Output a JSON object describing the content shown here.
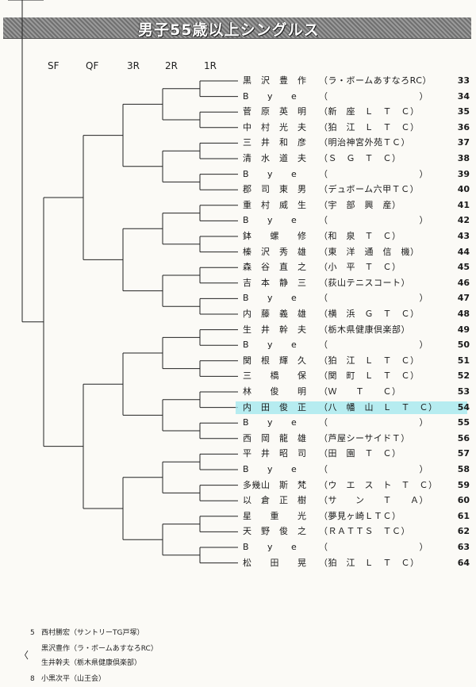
{
  "title": "男子55歳以上シングルス",
  "rounds": [
    "SF",
    "QF",
    "3R",
    "2R",
    "1R"
  ],
  "entries": [
    {
      "num": "33",
      "name": "黒　沢　豊　作",
      "club": "（ラ・ボームあすなろRC）"
    },
    {
      "num": "34",
      "name": "B　　y　　e",
      "club": "（　　　　　　　　　　）"
    },
    {
      "num": "35",
      "name": "菅　原　英　明",
      "club": "（新　座　Ｌ　Ｔ　Ｃ）"
    },
    {
      "num": "36",
      "name": "中　村　光　夫",
      "club": "（狛　江　Ｌ　Ｔ　Ｃ）"
    },
    {
      "num": "37",
      "name": "三　井　和　彦",
      "club": "（明治神宮外苑ＴＣ）"
    },
    {
      "num": "38",
      "name": "清　水　道　夫",
      "club": "（Ｓ　Ｇ　Ｔ　Ｃ）"
    },
    {
      "num": "39",
      "name": "B　　y　　e",
      "club": "（　　　　　　　　　　）"
    },
    {
      "num": "40",
      "name": "郡　司　東　男",
      "club": "（デュボーム六甲ＴＣ）"
    },
    {
      "num": "41",
      "name": "重　村　威　生",
      "club": "（宇　部　興　産）"
    },
    {
      "num": "42",
      "name": "B　　y　　e",
      "club": "（　　　　　　　　　　）"
    },
    {
      "num": "43",
      "name": "鉢　　螺　　修",
      "club": "（和　泉　Ｔ　Ｃ）"
    },
    {
      "num": "44",
      "name": "榛　沢　秀　雄",
      "club": "（東　洋　通　信　機）"
    },
    {
      "num": "45",
      "name": "森　谷　直　之",
      "club": "（小　平　Ｔ　Ｃ）"
    },
    {
      "num": "46",
      "name": "吉　本　静　三",
      "club": "（荻山テニスコート）"
    },
    {
      "num": "47",
      "name": "B　　y　　e",
      "club": "（　　　　　　　　　　）"
    },
    {
      "num": "48",
      "name": "内　藤　義　雄",
      "club": "（横　浜　Ｇ　Ｔ　Ｃ）"
    },
    {
      "num": "49",
      "name": "生　井　幹　夫",
      "club": "（栃木県健康倶楽部）"
    },
    {
      "num": "50",
      "name": "B　　y　　e",
      "club": "（　　　　　　　　　　）"
    },
    {
      "num": "51",
      "name": "関　根　輝　久",
      "club": "（狛　江　Ｌ　Ｔ　Ｃ）"
    },
    {
      "num": "52",
      "name": "三　　橋　　保",
      "club": "（関　町　Ｌ　Ｔ　Ｃ）"
    },
    {
      "num": "53",
      "name": "林　　俊　　明",
      "club": "（Ｗ　　Ｔ　　Ｃ）"
    },
    {
      "num": "54",
      "name": "内　田　俊　正",
      "club": "（八　幡　山　Ｌ　Ｔ　Ｃ）"
    },
    {
      "num": "55",
      "name": "B　　y　　e",
      "club": "（　　　　　　　　　　）"
    },
    {
      "num": "56",
      "name": "西　岡　龍　雄",
      "club": "（芦屋シーサイドＴ）"
    },
    {
      "num": "57",
      "name": "平　井　昭　司",
      "club": "（田　園　Ｔ　Ｃ）"
    },
    {
      "num": "58",
      "name": "B　　y　　e",
      "club": "（　　　　　　　　　　）"
    },
    {
      "num": "59",
      "name": "多幾山　斯　梵",
      "club": "（ウ　エ　ス　ト　Ｔ　Ｃ）"
    },
    {
      "num": "60",
      "name": "以　倉　正　樹",
      "club": "（サ　　ン　　Ｔ　　Ａ）"
    },
    {
      "num": "61",
      "name": "星　　重　　光",
      "club": "（夢見ヶ崎ＬＴＣ）"
    },
    {
      "num": "62",
      "name": "天　野　俊　之",
      "club": "（ＲＡＴＴＳ　ＴＣ）"
    },
    {
      "num": "63",
      "name": "B　　y　　e",
      "club": "（　　　　　　　　　　）"
    },
    {
      "num": "64",
      "name": "松　　田　　晃",
      "club": "（狛　江　Ｌ　Ｔ　Ｃ）"
    }
  ],
  "highlighted_entry": "54",
  "highlight_color": "#9fe7ee",
  "seeds": [
    {
      "mark": "5",
      "text": "西村勝宏（サントリーTG戸塚）"
    },
    {
      "mark": "",
      "text": "黒沢豊作（ラ・ボームあすなろRC）"
    },
    {
      "mark": "",
      "text": "生井幹夫（栃木県健康倶楽部）"
    },
    {
      "mark": "8",
      "text": "小黒次平（山王会）"
    }
  ],
  "seed_bracket_mark": "〈"
}
